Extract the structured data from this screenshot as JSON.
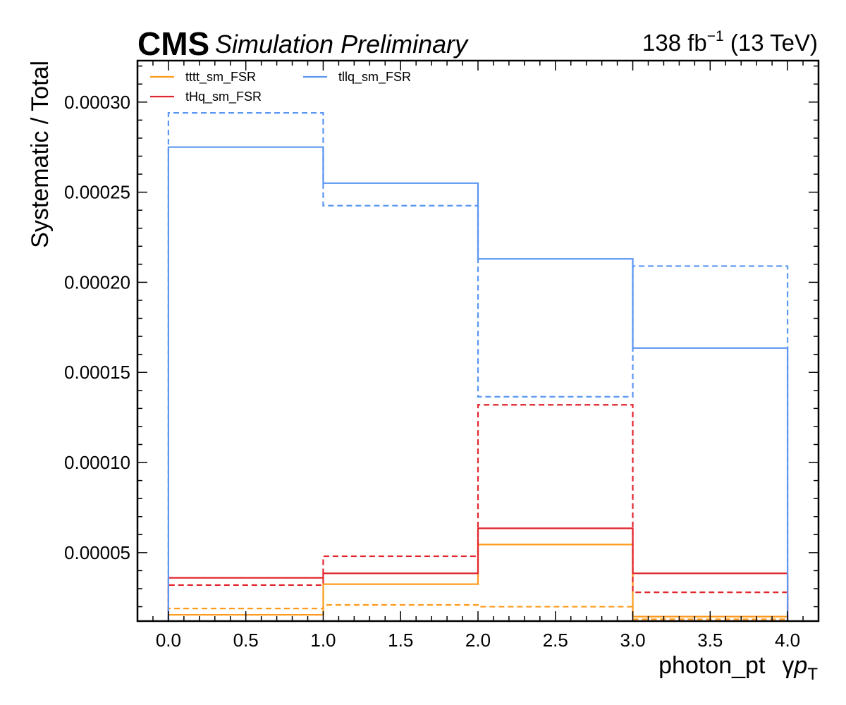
{
  "header": {
    "experiment": "CMS",
    "status": "Simulation Preliminary",
    "lumi_value": "138 fb",
    "lumi_exponent": "−1",
    "energy": " (13 TeV)"
  },
  "chart_data": {
    "type": "line",
    "step": true,
    "xlabel_parts": [
      "photon_pt",
      "γ",
      "p",
      "T"
    ],
    "ylabel": "Systematic / Total",
    "xlim": [
      -0.2,
      4.2
    ],
    "ylim": [
      1.2e-05,
      0.000323
    ],
    "x_ticks": [
      0.0,
      0.5,
      1.0,
      1.5,
      2.0,
      2.5,
      3.0,
      3.5,
      4.0
    ],
    "x_tick_labels": [
      "0.0",
      "0.5",
      "1.0",
      "1.5",
      "2.0",
      "2.5",
      "3.0",
      "3.5",
      "4.0"
    ],
    "y_ticks": [
      5e-05,
      0.0001,
      0.00015,
      0.0002,
      0.00025,
      0.0003
    ],
    "y_tick_labels": [
      "0.00005",
      "0.00010",
      "0.00015",
      "0.00020",
      "0.00025",
      "0.00030"
    ],
    "bin_edges": [
      0,
      1,
      2,
      3,
      4
    ],
    "legend_position": "top-left",
    "series": [
      {
        "name": "tttt_sm_FSR",
        "color": "#ff9a1c",
        "line": "solid",
        "values": [
          1.55e-05,
          3.25e-05,
          5.45e-05,
          1.45e-05
        ]
      },
      {
        "color": "#ff9a1c",
        "line": "dashed",
        "values": [
          1.9e-05,
          2.1e-05,
          2e-05,
          1.3e-05
        ]
      },
      {
        "name": "tHq_sm_FSR",
        "color": "#e1262d",
        "line": "solid",
        "values": [
          3.6e-05,
          3.85e-05,
          6.35e-05,
          3.85e-05
        ]
      },
      {
        "color": "#e1262d",
        "line": "dashed",
        "values": [
          3.2e-05,
          4.8e-05,
          0.000132,
          2.8e-05
        ]
      },
      {
        "name": "tllq_sm_FSR",
        "color": "#5a96f2",
        "line": "solid",
        "values": [
          0.000275,
          0.000255,
          0.000213,
          0.0001635
        ]
      },
      {
        "color": "#5a96f2",
        "line": "dashed",
        "values": [
          0.000294,
          0.0002425,
          0.0001365,
          0.000209
        ]
      }
    ]
  }
}
